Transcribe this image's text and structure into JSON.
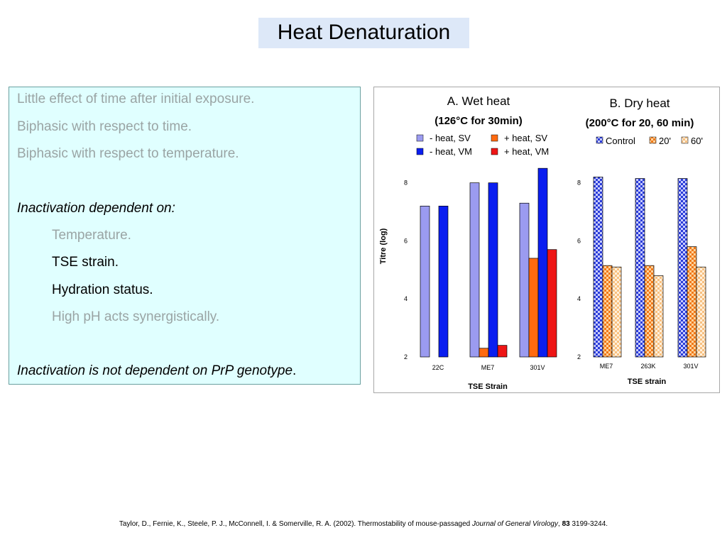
{
  "title": "Heat Denaturation",
  "textbox": {
    "line1": "Little effect of time after initial exposure.",
    "line2": "Biphasic with respect to time.",
    "line3": "Biphasic with respect to temperature.",
    "heading1": "Inactivation dependent on:",
    "item1": "Temperature.",
    "item2": "TSE strain.",
    "item3": "Hydration status.",
    "item4": "High pH acts synergistically.",
    "heading2_main": "Inactivation is not dependent on PrP genotype",
    "heading2_end": "."
  },
  "chart_data": [
    {
      "type": "bar",
      "title": "A. Wet heat",
      "subtitle": "(126°C for 30min)",
      "xlabel": "TSE Strain",
      "ylabel": "Titre (log)",
      "ylim": [
        2,
        8.7
      ],
      "yticks": [
        "2",
        "4",
        "6",
        "8"
      ],
      "categories": [
        "22C",
        "ME7",
        "301V"
      ],
      "legend_position": "top",
      "series": [
        {
          "name": "- heat, SV",
          "color": "#9b9bf0",
          "values": [
            7.2,
            8.0,
            7.3
          ]
        },
        {
          "name": "+ heat, SV",
          "color": "#ff6a10",
          "values": [
            null,
            2.3,
            5.4
          ]
        },
        {
          "name": "- heat, VM",
          "color": "#0a1ef0",
          "values": [
            7.2,
            8.0,
            8.5
          ]
        },
        {
          "name": "+ heat, VM",
          "color": "#ee1515",
          "values": [
            null,
            2.4,
            5.7
          ]
        }
      ]
    },
    {
      "type": "bar",
      "title": "B. Dry heat",
      "subtitle": "(200°C for 20, 60 min)",
      "xlabel": "TSE strain",
      "ylabel": "",
      "ylim": [
        2,
        8.7
      ],
      "yticks": [
        "2",
        "4",
        "6",
        "8"
      ],
      "categories": [
        "ME7",
        "263K",
        "301V"
      ],
      "legend_position": "top",
      "series": [
        {
          "name": "Control",
          "color": "#2a3cd8",
          "values": [
            8.2,
            8.15,
            8.15
          ]
        },
        {
          "name": "20'",
          "color": "#f07818",
          "values": [
            5.15,
            5.15,
            5.8
          ]
        },
        {
          "name": "60'",
          "color": "#f8c080",
          "values": [
            5.1,
            4.8,
            5.1
          ]
        }
      ]
    }
  ],
  "citation": {
    "authors": "Taylor, D., Fernie, K., Steele, P. J., McConnell, I. & Somerville, R. A. (2002). Thermostability of mouse-passaged ",
    "journal": "Journal of General Virology",
    "sep": ", ",
    "volume": "83",
    "pages": " 3199-3244."
  }
}
